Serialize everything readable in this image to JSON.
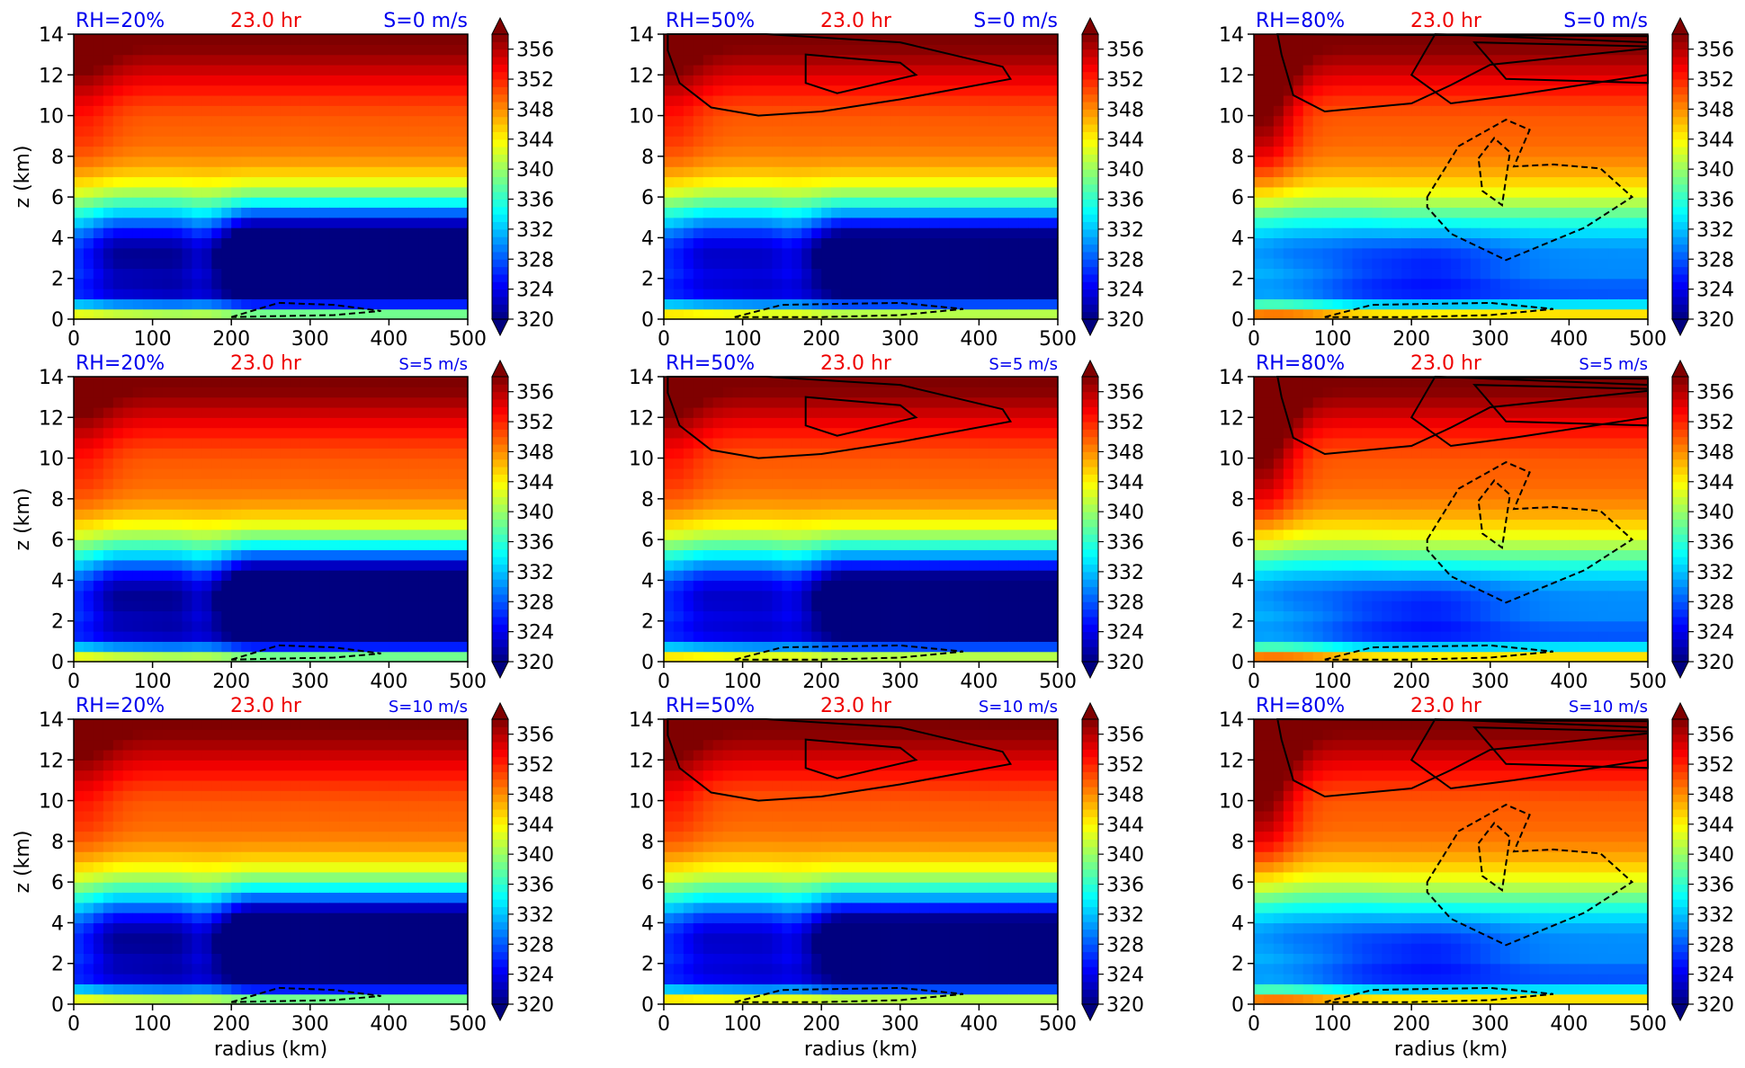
{
  "colors": {
    "rh_label": "#0000ee",
    "time_label": "#ee0000",
    "shear_label": "#0000ee",
    "colormap": [
      "#00007f",
      "#0000ff",
      "#007fff",
      "#00ffff",
      "#7fff7f",
      "#ffff00",
      "#ff7f00",
      "#ff0000",
      "#7f0000"
    ]
  },
  "chart_data": [
    {
      "type": "heatmap",
      "rh": "RH=20%",
      "time": "23.0 hr",
      "shear": "S=0 m/s",
      "rh_pct": 20,
      "shear_ms": 0,
      "ylabel": "z (km)",
      "xlabel": "",
      "x_ticks": [
        "0",
        "100",
        "200",
        "300",
        "400",
        "500"
      ],
      "y_ticks": [
        "0",
        "2",
        "4",
        "6",
        "8",
        "10",
        "12",
        "14"
      ],
      "xlim": [
        0,
        500
      ],
      "ylim": [
        0,
        14
      ],
      "colorbar_ticks": [
        "320",
        "324",
        "328",
        "332",
        "336",
        "340",
        "344",
        "348",
        "352",
        "356"
      ],
      "clim": [
        320,
        358
      ]
    },
    {
      "type": "heatmap",
      "rh": "RH=50%",
      "time": "23.0 hr",
      "shear": "S=0 m/s",
      "rh_pct": 50,
      "shear_ms": 0,
      "ylabel": "",
      "xlabel": "",
      "x_ticks": [
        "0",
        "100",
        "200",
        "300",
        "400",
        "500"
      ],
      "y_ticks": [
        "0",
        "2",
        "4",
        "6",
        "8",
        "10",
        "12",
        "14"
      ],
      "xlim": [
        0,
        500
      ],
      "ylim": [
        0,
        14
      ],
      "colorbar_ticks": [
        "320",
        "324",
        "328",
        "332",
        "336",
        "340",
        "344",
        "348",
        "352",
        "356"
      ],
      "clim": [
        320,
        358
      ]
    },
    {
      "type": "heatmap",
      "rh": "RH=80%",
      "time": "23.0 hr",
      "shear": "S=0 m/s",
      "rh_pct": 80,
      "shear_ms": 0,
      "ylabel": "",
      "xlabel": "",
      "x_ticks": [
        "0",
        "100",
        "200",
        "300",
        "400",
        "500"
      ],
      "y_ticks": [
        "0",
        "2",
        "4",
        "6",
        "8",
        "10",
        "12",
        "14"
      ],
      "xlim": [
        0,
        500
      ],
      "ylim": [
        0,
        14
      ],
      "colorbar_ticks": [
        "320",
        "324",
        "328",
        "332",
        "336",
        "340",
        "344",
        "348",
        "352",
        "356"
      ],
      "clim": [
        320,
        358
      ]
    },
    {
      "type": "heatmap",
      "rh": "RH=20%",
      "time": "23.0 hr",
      "shear": "S=5 m/s",
      "rh_pct": 20,
      "shear_ms": 5,
      "ylabel": "z (km)",
      "xlabel": "",
      "x_ticks": [
        "0",
        "100",
        "200",
        "300",
        "400",
        "500"
      ],
      "y_ticks": [
        "0",
        "2",
        "4",
        "6",
        "8",
        "10",
        "12",
        "14"
      ],
      "xlim": [
        0,
        500
      ],
      "ylim": [
        0,
        14
      ],
      "colorbar_ticks": [
        "320",
        "324",
        "328",
        "332",
        "336",
        "340",
        "344",
        "348",
        "352",
        "356"
      ],
      "clim": [
        320,
        358
      ]
    },
    {
      "type": "heatmap",
      "rh": "RH=50%",
      "time": "23.0 hr",
      "shear": "S=5 m/s",
      "rh_pct": 50,
      "shear_ms": 5,
      "ylabel": "",
      "xlabel": "",
      "x_ticks": [
        "0",
        "100",
        "200",
        "300",
        "400",
        "500"
      ],
      "y_ticks": [
        "0",
        "2",
        "4",
        "6",
        "8",
        "10",
        "12",
        "14"
      ],
      "xlim": [
        0,
        500
      ],
      "ylim": [
        0,
        14
      ],
      "colorbar_ticks": [
        "320",
        "324",
        "328",
        "332",
        "336",
        "340",
        "344",
        "348",
        "352",
        "356"
      ],
      "clim": [
        320,
        358
      ]
    },
    {
      "type": "heatmap",
      "rh": "RH=80%",
      "time": "23.0 hr",
      "shear": "S=5 m/s",
      "rh_pct": 80,
      "shear_ms": 5,
      "ylabel": "",
      "xlabel": "",
      "x_ticks": [
        "0",
        "100",
        "200",
        "300",
        "400",
        "500"
      ],
      "y_ticks": [
        "0",
        "2",
        "4",
        "6",
        "8",
        "10",
        "12",
        "14"
      ],
      "xlim": [
        0,
        500
      ],
      "ylim": [
        0,
        14
      ],
      "colorbar_ticks": [
        "320",
        "324",
        "328",
        "332",
        "336",
        "340",
        "344",
        "348",
        "352",
        "356"
      ],
      "clim": [
        320,
        358
      ]
    },
    {
      "type": "heatmap",
      "rh": "RH=20%",
      "time": "23.0 hr",
      "shear": "S=10 m/s",
      "rh_pct": 20,
      "shear_ms": 10,
      "ylabel": "z (km)",
      "xlabel": "radius (km)",
      "x_ticks": [
        "0",
        "100",
        "200",
        "300",
        "400",
        "500"
      ],
      "y_ticks": [
        "0",
        "2",
        "4",
        "6",
        "8",
        "10",
        "12",
        "14"
      ],
      "xlim": [
        0,
        500
      ],
      "ylim": [
        0,
        14
      ],
      "colorbar_ticks": [
        "320",
        "324",
        "328",
        "332",
        "336",
        "340",
        "344",
        "348",
        "352",
        "356"
      ],
      "clim": [
        320,
        358
      ]
    },
    {
      "type": "heatmap",
      "rh": "RH=50%",
      "time": "23.0 hr",
      "shear": "S=10 m/s",
      "rh_pct": 50,
      "shear_ms": 10,
      "ylabel": "",
      "xlabel": "radius (km)",
      "x_ticks": [
        "0",
        "100",
        "200",
        "300",
        "400",
        "500"
      ],
      "y_ticks": [
        "0",
        "2",
        "4",
        "6",
        "8",
        "10",
        "12",
        "14"
      ],
      "xlim": [
        0,
        500
      ],
      "ylim": [
        0,
        14
      ],
      "colorbar_ticks": [
        "320",
        "324",
        "328",
        "332",
        "336",
        "340",
        "344",
        "348",
        "352",
        "356"
      ],
      "clim": [
        320,
        358
      ]
    },
    {
      "type": "heatmap",
      "rh": "RH=80%",
      "time": "23.0 hr",
      "shear": "S=10 m/s",
      "rh_pct": 80,
      "shear_ms": 10,
      "ylabel": "",
      "xlabel": "radius (km)",
      "x_ticks": [
        "0",
        "100",
        "200",
        "300",
        "400",
        "500"
      ],
      "y_ticks": [
        "0",
        "2",
        "4",
        "6",
        "8",
        "10",
        "12",
        "14"
      ],
      "xlim": [
        0,
        500
      ],
      "ylim": [
        0,
        14
      ],
      "colorbar_ticks": [
        "320",
        "324",
        "328",
        "332",
        "336",
        "340",
        "344",
        "348",
        "352",
        "356"
      ],
      "clim": [
        320,
        358
      ]
    }
  ]
}
